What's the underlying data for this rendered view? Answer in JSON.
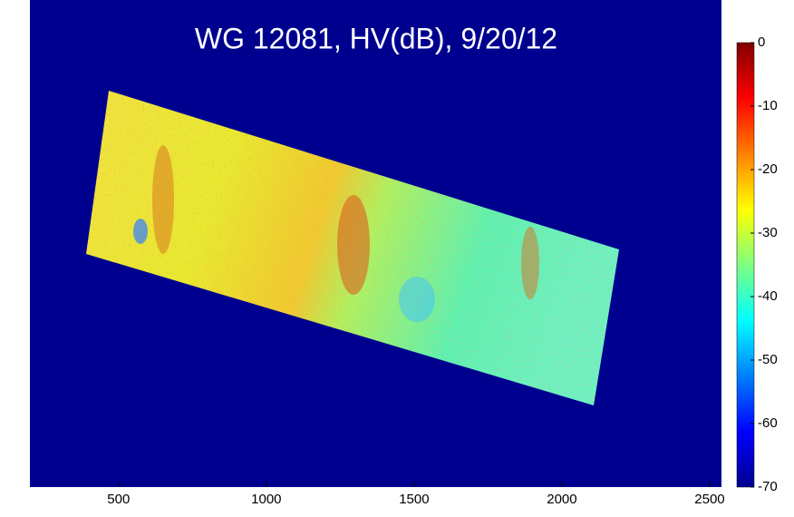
{
  "chart_data": {
    "type": "image",
    "title": "WG 12081, HV(dB), 9/20/12",
    "xlim": [
      200,
      2540
    ],
    "xticks": [
      500,
      1000,
      1500,
      2000,
      2500
    ],
    "colorbar": {
      "colormap": "jet",
      "clim": [
        -70,
        0
      ],
      "ticks": [
        0,
        -10,
        -20,
        -30,
        -40,
        -50,
        -60,
        -70
      ]
    }
  }
}
